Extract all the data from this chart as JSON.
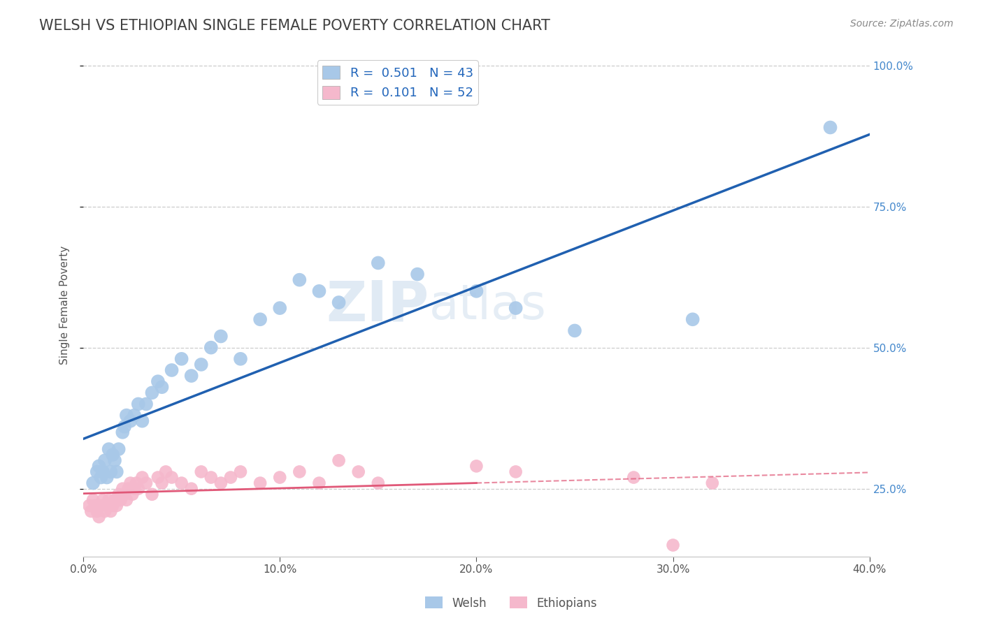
{
  "title": "WELSH VS ETHIOPIAN SINGLE FEMALE POVERTY CORRELATION CHART",
  "source_text": "Source: ZipAtlas.com",
  "ylabel": "Single Female Poverty",
  "watermark": "ZIPatlas",
  "xlim": [
    0.0,
    0.4
  ],
  "ylim": [
    0.13,
    1.02
  ],
  "xticks": [
    0.0,
    0.1,
    0.2,
    0.3,
    0.4
  ],
  "xtick_labels": [
    "0.0%",
    "10.0%",
    "20.0%",
    "30.0%",
    "40.0%"
  ],
  "yticks": [
    0.25,
    0.5,
    0.75,
    1.0
  ],
  "ytick_labels": [
    "25.0%",
    "50.0%",
    "75.0%",
    "100.0%"
  ],
  "welsh_R": "0.501",
  "welsh_N": "43",
  "ethiopian_R": "0.101",
  "ethiopian_N": "52",
  "welsh_color": "#a8c8e8",
  "ethiopian_color": "#f5b8cc",
  "welsh_line_color": "#2060b0",
  "ethiopian_line_color": "#e05878",
  "background_color": "#ffffff",
  "grid_color": "#cccccc",
  "title_color": "#404040",
  "title_fontsize": 15,
  "welsh_x": [
    0.005,
    0.007,
    0.008,
    0.009,
    0.01,
    0.011,
    0.012,
    0.013,
    0.014,
    0.015,
    0.016,
    0.017,
    0.018,
    0.02,
    0.021,
    0.022,
    0.024,
    0.026,
    0.028,
    0.03,
    0.032,
    0.035,
    0.038,
    0.04,
    0.045,
    0.05,
    0.055,
    0.06,
    0.065,
    0.07,
    0.08,
    0.09,
    0.1,
    0.11,
    0.12,
    0.13,
    0.15,
    0.17,
    0.2,
    0.22,
    0.25,
    0.31,
    0.38
  ],
  "welsh_y": [
    0.26,
    0.28,
    0.29,
    0.27,
    0.28,
    0.3,
    0.27,
    0.32,
    0.28,
    0.31,
    0.3,
    0.28,
    0.32,
    0.35,
    0.36,
    0.38,
    0.37,
    0.38,
    0.4,
    0.37,
    0.4,
    0.42,
    0.44,
    0.43,
    0.46,
    0.48,
    0.45,
    0.47,
    0.5,
    0.52,
    0.48,
    0.55,
    0.57,
    0.62,
    0.6,
    0.58,
    0.65,
    0.63,
    0.6,
    0.57,
    0.53,
    0.55,
    0.89
  ],
  "ethiopian_x": [
    0.003,
    0.004,
    0.005,
    0.006,
    0.007,
    0.008,
    0.009,
    0.01,
    0.011,
    0.012,
    0.013,
    0.014,
    0.015,
    0.016,
    0.017,
    0.018,
    0.019,
    0.02,
    0.021,
    0.022,
    0.023,
    0.024,
    0.025,
    0.026,
    0.027,
    0.028,
    0.03,
    0.032,
    0.035,
    0.038,
    0.04,
    0.042,
    0.045,
    0.05,
    0.055,
    0.06,
    0.065,
    0.07,
    0.075,
    0.08,
    0.09,
    0.1,
    0.11,
    0.12,
    0.13,
    0.14,
    0.15,
    0.2,
    0.22,
    0.28,
    0.3,
    0.32
  ],
  "ethiopian_y": [
    0.22,
    0.21,
    0.23,
    0.22,
    0.21,
    0.2,
    0.22,
    0.23,
    0.21,
    0.22,
    0.23,
    0.21,
    0.22,
    0.23,
    0.22,
    0.24,
    0.23,
    0.25,
    0.24,
    0.23,
    0.25,
    0.26,
    0.24,
    0.25,
    0.26,
    0.25,
    0.27,
    0.26,
    0.24,
    0.27,
    0.26,
    0.28,
    0.27,
    0.26,
    0.25,
    0.28,
    0.27,
    0.26,
    0.27,
    0.28,
    0.26,
    0.27,
    0.28,
    0.26,
    0.3,
    0.28,
    0.26,
    0.29,
    0.28,
    0.27,
    0.15,
    0.26
  ]
}
